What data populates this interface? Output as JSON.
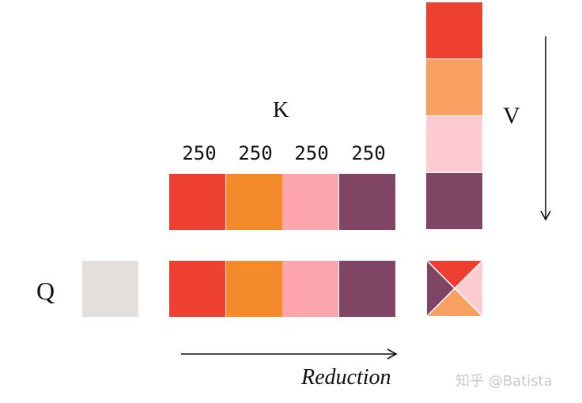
{
  "labels": {
    "k": "K",
    "v": "V",
    "q": "Q",
    "reduction": "Reduction"
  },
  "k_block_sizes": [
    "250",
    "250",
    "250",
    "250"
  ],
  "watermark": "知乎 @Batista",
  "colors": {
    "red": "#ee4030",
    "orange": "#f58a2b",
    "pink": "#fda5ad",
    "purple": "#804565",
    "v_orange": "#f7a062",
    "v_pink": "#fecbd1",
    "q_gray": "#e3dfdd",
    "arrow": "#111111"
  }
}
